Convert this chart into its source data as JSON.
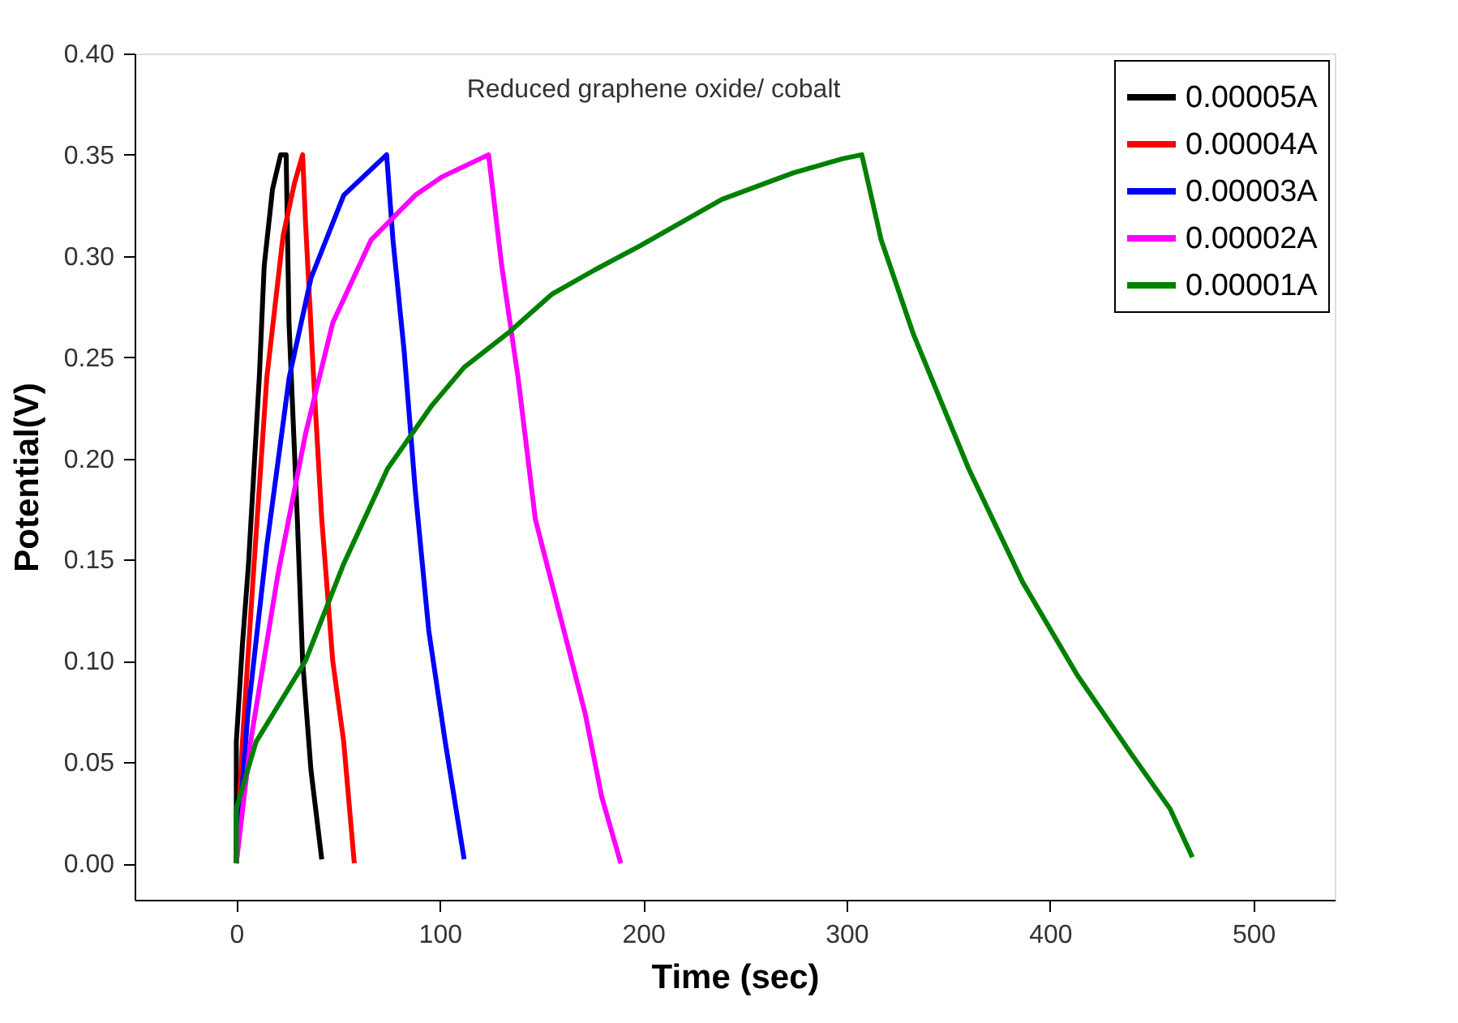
{
  "chart_data": {
    "type": "line",
    "xlabel": "Time (sec)",
    "ylabel": "Potential(V)",
    "annotations": [
      "Reduced graphene oxide/ cobalt"
    ],
    "xlim": [
      -50,
      540
    ],
    "xticks": [
      0,
      100,
      200,
      300,
      400,
      500
    ],
    "ylim": [
      -0.018,
      0.4
    ],
    "yticks": [
      {
        "value": 0,
        "label": "0.00"
      },
      {
        "value": 0.05,
        "label": "0.05"
      },
      {
        "value": 0.1,
        "label": "0.10"
      },
      {
        "value": 0.15,
        "label": "0.15"
      },
      {
        "value": 0.2,
        "label": "0.20"
      },
      {
        "value": 0.25,
        "label": "0.25"
      },
      {
        "value": 0.3,
        "label": "0.30"
      },
      {
        "value": 0.35,
        "label": "0.35"
      },
      {
        "value": 0.4,
        "label": "0.40"
      }
    ],
    "legend": "top right",
    "grid": false,
    "marker": "none",
    "line_style": "solid",
    "series": [
      {
        "name": "0.00005A",
        "color": "#000000",
        "x": [
          0,
          0,
          3,
          6,
          8.6,
          11.3,
          13.7,
          17.8,
          21.8,
          24.5,
          25.9,
          30,
          32.6,
          36.7,
          42
        ],
        "values": [
          0,
          0.06,
          0.108,
          0.148,
          0.193,
          0.24,
          0.295,
          0.333,
          0.35,
          0.35,
          0.267,
          0.17,
          0.1,
          0.046,
          0.002
        ]
      },
      {
        "name": "0.00004A",
        "color": "#ff0000",
        "x": [
          0,
          3,
          8.4,
          15,
          23,
          28.6,
          32.6,
          34,
          38,
          42,
          47.4,
          52.8,
          58
        ],
        "values": [
          0,
          0.06,
          0.143,
          0.24,
          0.31,
          0.336,
          0.35,
          0.317,
          0.24,
          0.17,
          0.1,
          0.06,
          0
        ]
      },
      {
        "name": "0.00003A",
        "color": "#0000ff",
        "x": [
          0,
          5.7,
          15,
          26,
          36.7,
          52.8,
          73.9,
          77,
          82.5,
          88,
          94.6,
          102.7,
          112
        ],
        "values": [
          0,
          0.074,
          0.157,
          0.24,
          0.289,
          0.33,
          0.35,
          0.308,
          0.253,
          0.184,
          0.115,
          0.06,
          0.002
        ]
      },
      {
        "name": "0.00002A",
        "color": "#ff00ff",
        "x": [
          0,
          7,
          20.5,
          34,
          47.4,
          66.3,
          88,
          101,
          124,
          130.5,
          138.5,
          147,
          171.5,
          179.6,
          189
        ],
        "values": [
          0,
          0.06,
          0.143,
          0.212,
          0.267,
          0.308,
          0.33,
          0.339,
          0.35,
          0.295,
          0.24,
          0.17,
          0.074,
          0.033,
          0
        ]
      },
      {
        "name": "0.00001A",
        "color": "#008000",
        "x": [
          0,
          0,
          9.7,
          34,
          52.8,
          74.4,
          96,
          112,
          133.7,
          155,
          176,
          198.4,
          238.8,
          273.7,
          298,
          307.5,
          317,
          333,
          360,
          386.5,
          413.4,
          440,
          459,
          470
        ],
        "values": [
          0,
          0.027,
          0.06,
          0.1,
          0.148,
          0.195,
          0.226,
          0.245,
          0.262,
          0.281,
          0.293,
          0.305,
          0.328,
          0.341,
          0.348,
          0.35,
          0.308,
          0.261,
          0.195,
          0.139,
          0.093,
          0.054,
          0.027,
          0.003
        ]
      }
    ]
  }
}
